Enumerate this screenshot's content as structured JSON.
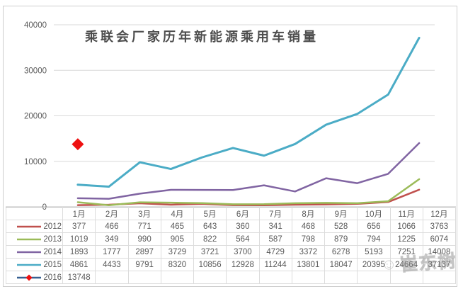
{
  "chart_data": {
    "type": "line",
    "title": "乘联会厂家历年新能源乘用车销量",
    "categories": [
      "1月",
      "2月",
      "3月",
      "4月",
      "5月",
      "6月",
      "7月",
      "8月",
      "9月",
      "10月",
      "11月",
      "12月"
    ],
    "series": [
      {
        "name": "2012",
        "color": "#c0504d",
        "values": [
          377,
          466,
          771,
          465,
          643,
          360,
          341,
          468,
          528,
          656,
          1066,
          3763
        ]
      },
      {
        "name": "2013",
        "color": "#9bbb59",
        "values": [
          1019,
          349,
          990,
          905,
          822,
          564,
          587,
          798,
          879,
          794,
          1225,
          6074
        ]
      },
      {
        "name": "2014",
        "color": "#8064a2",
        "values": [
          1893,
          1777,
          2897,
          3729,
          3721,
          3700,
          4729,
          3372,
          6278,
          5193,
          7251,
          14008
        ]
      },
      {
        "name": "2015",
        "color": "#4bacc6",
        "values": [
          4861,
          4433,
          9791,
          8320,
          10856,
          12928,
          11244,
          13801,
          18047,
          20395,
          24664,
          37137
        ]
      },
      {
        "name": "2016",
        "color": "#376092",
        "marker": "diamond",
        "marker_color": "#ee1111",
        "values": [
          13748,
          null,
          null,
          null,
          null,
          null,
          null,
          null,
          null,
          null,
          null,
          null
        ]
      }
    ],
    "y_ticks": [
      0,
      10000,
      20000,
      30000,
      40000
    ],
    "ylim": [
      0,
      40000
    ],
    "grid": true,
    "legend_position": "data-table-left",
    "data_table_shown": true
  },
  "watermark": {
    "emoji": "☺",
    "text": "崔东树"
  },
  "colors": {
    "gridline": "#d9d9d9",
    "axis_line": "#bfbfbf",
    "tick_text": "#595959",
    "table_border": "#dcdcdc",
    "title_text": "#4d4d4d"
  }
}
